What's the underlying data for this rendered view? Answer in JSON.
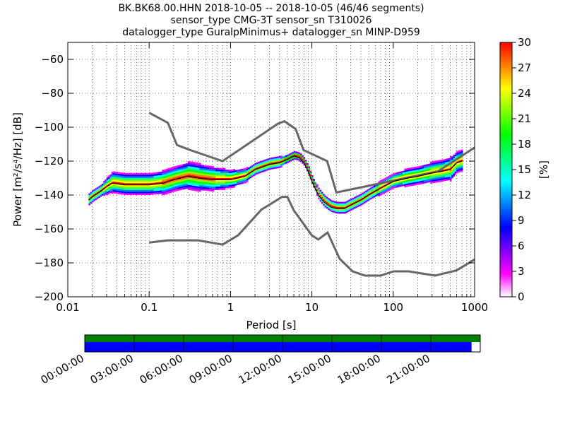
{
  "title_lines": [
    "BK.BK68.00.HHN   2018-10-05 -- 2018-10-05  (46/46 segments)",
    "sensor_type CMG-3T sensor_sn T310026",
    "datalogger_type GuralpMinimus+ datalogger_sn MINP-D959"
  ],
  "chart_data": {
    "type": "heatmap",
    "x_scale": "log",
    "xlim": [
      0.01,
      1000
    ],
    "ylim": [
      -200,
      -50
    ],
    "xlabel": "Period [s]",
    "ylabel": "Power [m²/s⁴/Hz] [dB]",
    "x_ticks": [
      "0.01",
      "0.1",
      "1",
      "10",
      "100",
      "1000"
    ],
    "y_ticks": [
      "−200",
      "−180",
      "−160",
      "−140",
      "−120",
      "−100",
      "−80",
      "−60"
    ],
    "y_tick_values": [
      -200,
      -180,
      -160,
      -140,
      -120,
      -100,
      -80,
      -60
    ],
    "grid": true,
    "colorbar": {
      "label": "[%]",
      "range": [
        0,
        30
      ],
      "ticks": [
        "0",
        "3",
        "6",
        "9",
        "12",
        "15",
        "18",
        "21",
        "24",
        "27",
        "30"
      ],
      "colormap": [
        "#ffffff",
        "#ff00ff",
        "#7f00ff",
        "#0000ff",
        "#0080ff",
        "#00ffff",
        "#00ff80",
        "#00ff00",
        "#80ff00",
        "#ffff00",
        "#ff8000",
        "#ff0000"
      ]
    },
    "noise_models": [
      {
        "periods": [
          0.1,
          0.17,
          0.4,
          0.8,
          1.24,
          2.4,
          4.3,
          5.0,
          6.0,
          10.0,
          12.0,
          15.6,
          21.9,
          31.6,
          45.0,
          70.0,
          101.0,
          154.0,
          328.0,
          600.0,
          1000.0
        ],
        "values": [
          -168.0,
          -166.7,
          -166.7,
          -169.2,
          -163.7,
          -148.6,
          -141.1,
          -141.1,
          -149.0,
          -163.8,
          -166.2,
          -162.1,
          -177.5,
          -185.0,
          -187.5,
          -187.5,
          -185.0,
          -185.0,
          -187.5,
          -184.4,
          -178.0
        ]
      },
      {
        "periods": [
          0.1,
          0.17,
          0.22,
          0.32,
          0.8,
          3.8,
          4.6,
          6.3,
          7.9,
          15.4,
          20.0,
          354.8,
          1000.0
        ],
        "values": [
          -91.5,
          -97.4,
          -110.5,
          -113.5,
          -120.0,
          -98.0,
          -96.5,
          -101.0,
          -113.5,
          -120.0,
          -138.5,
          -126.0,
          -112.0
        ]
      }
    ],
    "mean_curve": {
      "periods": [
        0.018,
        0.02,
        0.025,
        0.03,
        0.035,
        0.05,
        0.08,
        0.1,
        0.15,
        0.2,
        0.3,
        0.4,
        0.6,
        0.8,
        1.0,
        1.5,
        2.0,
        3.0,
        4.0,
        5.0,
        6.0,
        7.0,
        8.0,
        9.0,
        10.0,
        12.0,
        14.0,
        17.0,
        20.0,
        25.0,
        30.0,
        40.0,
        50.0,
        70.0,
        100.0,
        150.0,
        200.0,
        300.0,
        400.0,
        500.0,
        600.0,
        700.0
      ],
      "values": [
        -143,
        -141,
        -138,
        -135,
        -133,
        -134,
        -134,
        -134,
        -133,
        -131,
        -129,
        -130,
        -131,
        -131,
        -131,
        -129,
        -125,
        -122,
        -121,
        -119,
        -117,
        -118,
        -121,
        -126,
        -132,
        -140,
        -144,
        -147,
        -148,
        -148,
        -146,
        -143,
        -140,
        -136,
        -132,
        -130,
        -129,
        -127,
        -126,
        -125,
        -121,
        -120
      ]
    },
    "spread_db": [
      3,
      3,
      3,
      5,
      6,
      6,
      6,
      6,
      7,
      7,
      8,
      8,
      7,
      6,
      5,
      4,
      3,
      3,
      3,
      2,
      2,
      2,
      2,
      2,
      2,
      3,
      3,
      3,
      3,
      3,
      3,
      3,
      3,
      4,
      4,
      5,
      5,
      6,
      6,
      7,
      6,
      6
    ],
    "time_axis": {
      "labels": [
        "00:00:00",
        "03:00:00",
        "06:00:00",
        "09:00:00",
        "12:00:00",
        "15:00:00",
        "18:00:00",
        "21:00:00"
      ],
      "data_coverage": 0.978,
      "coverage_colors": {
        "top": "#008000",
        "bottom": "#0000ff"
      }
    }
  }
}
